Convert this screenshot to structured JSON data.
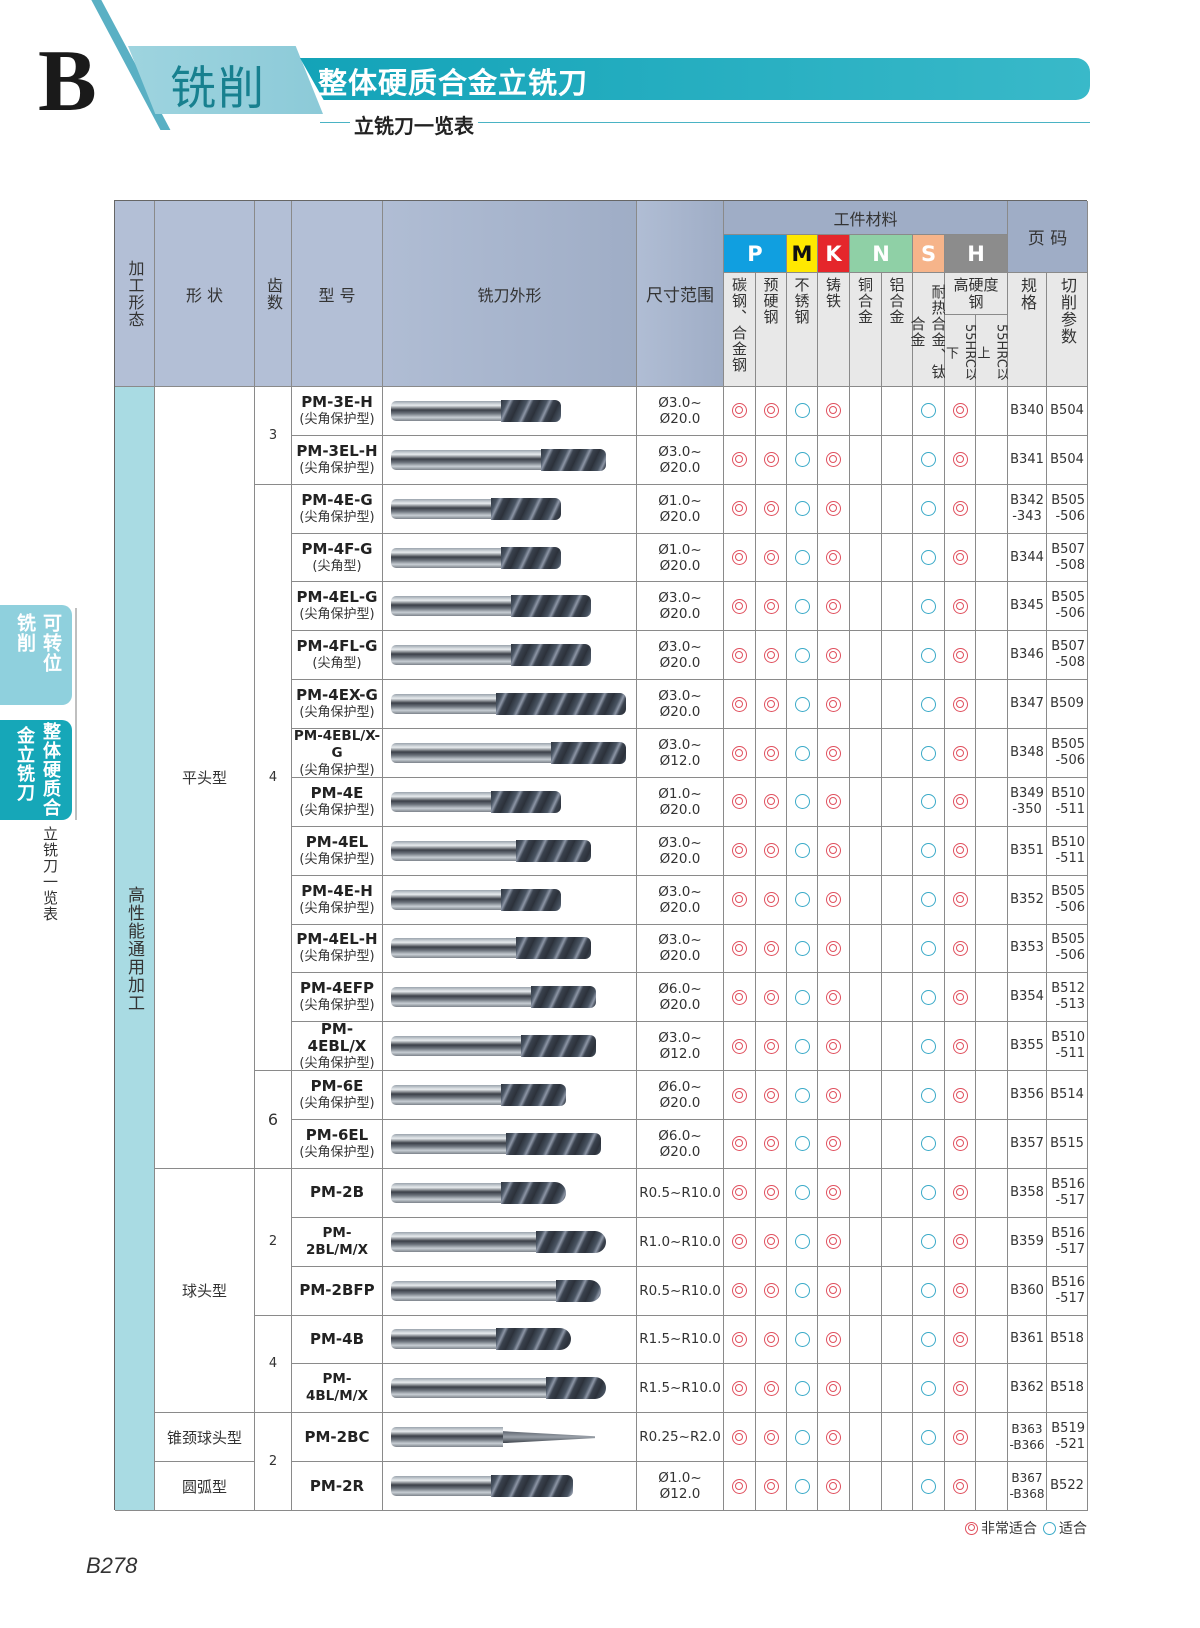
{
  "header": {
    "section_letter": "B",
    "category": "铣削",
    "title": "整体硬质合金立铣刀",
    "subtitle": "立铣刀一览表"
  },
  "side_tabs": [
    {
      "lines": [
        "可转位",
        "铣削"
      ],
      "active": false
    },
    {
      "lines": [
        "整体硬质合",
        "金立铣刀"
      ],
      "active": true
    }
  ],
  "side_caption": "立铣刀一览表",
  "table": {
    "headers": {
      "process": "加工形态",
      "shape": "形 状",
      "teeth": "齿数",
      "model": "型 号",
      "profile": "铣刀外形",
      "size_range": "尺寸范围",
      "materials_group": "工件材料",
      "pages_group": "页 码",
      "iso_groups": [
        {
          "letter": "P",
          "color": "#109fe0",
          "text_color": "#ffffff"
        },
        {
          "letter": "M",
          "color": "#ffe800",
          "text_color": "#111111"
        },
        {
          "letter": "K",
          "color": "#e5262b",
          "text_color": "#ffffff"
        },
        {
          "letter": "N",
          "color": "#8fd0a6",
          "text_color": "#ffffff"
        },
        {
          "letter": "S",
          "color": "#f6b48a",
          "text_color": "#ffffff"
        },
        {
          "letter": "H",
          "color": "#8c8c8c",
          "text_color": "#ffffff"
        }
      ],
      "materials": [
        "碳钢、合金钢",
        "预硬钢",
        "不锈钢",
        "铸铁",
        "铜合金",
        "铝合金",
        "耐热合金、钛合金",
        "55HRC以下",
        "55HRC以上"
      ],
      "hardened_group": "高硬度钢",
      "page_spec": "规格",
      "page_cutting": "切削参数"
    },
    "process_label": "高性能通用加工",
    "shape_groups": [
      {
        "label": "平头型",
        "start": 0,
        "span": 16
      },
      {
        "label": "球头型",
        "start": 16,
        "span": 5
      },
      {
        "label": "锥颈球头型",
        "start": 21,
        "span": 1
      },
      {
        "label": "圆弧型",
        "start": 22,
        "span": 1
      }
    ],
    "teeth_groups": [
      {
        "label": "3",
        "start": 0,
        "span": 2
      },
      {
        "label": "4",
        "start": 2,
        "span": 12
      },
      {
        "label": "6",
        "start": 14,
        "span": 2
      },
      {
        "label": "2",
        "start": 16,
        "span": 3
      },
      {
        "label": "4",
        "start": 19,
        "span": 2
      },
      {
        "label": "2",
        "start": 21,
        "span": 2
      }
    ],
    "rows": [
      {
        "model": "PM-3E-H",
        "note": "(尖角保护型)",
        "size": "Ø3.0~ Ø20.0",
        "spec": [
          "B340"
        ],
        "cut": [
          "B504"
        ]
      },
      {
        "model": "PM-3EL-H",
        "note": "(尖角保护型)",
        "size": "Ø3.0~ Ø20.0",
        "spec": [
          "B341"
        ],
        "cut": [
          "B504"
        ]
      },
      {
        "model": "PM-4E-G",
        "note": "(尖角保护型)",
        "size": "Ø1.0~ Ø20.0",
        "spec": [
          "B342",
          "-343"
        ],
        "cut": [
          "B505",
          "-506"
        ]
      },
      {
        "model": "PM-4F-G",
        "note": "(尖角型)",
        "size": "Ø1.0~ Ø20.0",
        "spec": [
          "B344"
        ],
        "cut": [
          "B507",
          "-508"
        ]
      },
      {
        "model": "PM-4EL-G",
        "note": "(尖角保护型)",
        "size": "Ø3.0~ Ø20.0",
        "spec": [
          "B345"
        ],
        "cut": [
          "B505",
          "-506"
        ]
      },
      {
        "model": "PM-4FL-G",
        "note": "(尖角型)",
        "size": "Ø3.0~ Ø20.0",
        "spec": [
          "B346"
        ],
        "cut": [
          "B507",
          "-508"
        ]
      },
      {
        "model": "PM-4EX-G",
        "note": "(尖角保护型)",
        "size": "Ø3.0~ Ø20.0",
        "spec": [
          "B347"
        ],
        "cut": [
          "B509"
        ]
      },
      {
        "model": "PM-4EBL/X-G",
        "note": "(尖角保护型)",
        "size": "Ø3.0~ Ø12.0",
        "spec": [
          "B348"
        ],
        "cut": [
          "B505",
          "-506"
        ]
      },
      {
        "model": "PM-4E",
        "note": "(尖角保护型)",
        "size": "Ø1.0~ Ø20.0",
        "spec": [
          "B349",
          "-350"
        ],
        "cut": [
          "B510",
          "-511"
        ]
      },
      {
        "model": "PM-4EL",
        "note": "(尖角保护型)",
        "size": "Ø3.0~ Ø20.0",
        "spec": [
          "B351"
        ],
        "cut": [
          "B510",
          "-511"
        ]
      },
      {
        "model": "PM-4E-H",
        "note": "(尖角保护型)",
        "size": "Ø3.0~ Ø20.0",
        "spec": [
          "B352"
        ],
        "cut": [
          "B505",
          "-506"
        ]
      },
      {
        "model": "PM-4EL-H",
        "note": "(尖角保护型)",
        "size": "Ø3.0~ Ø20.0",
        "spec": [
          "B353"
        ],
        "cut": [
          "B505",
          "-506"
        ]
      },
      {
        "model": "PM-4EFP",
        "note": "(尖角保护型)",
        "size": "Ø6.0~ Ø20.0",
        "spec": [
          "B354"
        ],
        "cut": [
          "B512",
          "-513"
        ]
      },
      {
        "model": "PM-4EBL/X",
        "note": "(尖角保护型)",
        "size": "Ø3.0~ Ø12.0",
        "spec": [
          "B355"
        ],
        "cut": [
          "B510",
          "-511"
        ]
      },
      {
        "model": "PM-6E",
        "note": "(尖角保护型)",
        "size": "Ø6.0~ Ø20.0",
        "spec": [
          "B356"
        ],
        "cut": [
          "B514"
        ]
      },
      {
        "model": "PM-6EL",
        "note": "(尖角保护型)",
        "size": "Ø6.0~ Ø20.0",
        "spec": [
          "B357"
        ],
        "cut": [
          "B515"
        ]
      },
      {
        "model": "PM-2B",
        "note": "",
        "size": "R0.5~R10.0",
        "spec": [
          "B358"
        ],
        "cut": [
          "B516",
          "-517"
        ]
      },
      {
        "model": "PM-2BL/M/X",
        "note": "",
        "size": "R1.0~R10.0",
        "spec": [
          "B359"
        ],
        "cut": [
          "B516",
          "-517"
        ]
      },
      {
        "model": "PM-2BFP",
        "note": "",
        "size": "R0.5~R10.0",
        "spec": [
          "B360"
        ],
        "cut": [
          "B516",
          "-517"
        ]
      },
      {
        "model": "PM-4B",
        "note": "",
        "size": "R1.5~R10.0",
        "spec": [
          "B361"
        ],
        "cut": [
          "B518"
        ]
      },
      {
        "model": "PM-4BL/M/X",
        "note": "",
        "size": "R1.5~R10.0",
        "spec": [
          "B362"
        ],
        "cut": [
          "B518"
        ]
      },
      {
        "model": "PM-2BC",
        "note": "",
        "size": "R0.25~R2.0",
        "spec": [
          "B363",
          "-B366"
        ],
        "cut": [
          "B519",
          "-521"
        ]
      },
      {
        "model": "PM-2R",
        "note": "",
        "size": "Ø1.0~ Ø12.0",
        "spec": [
          "B367",
          "-B368"
        ],
        "cut": [
          "B522"
        ]
      }
    ],
    "suitability_pattern": [
      "very",
      "very",
      "good",
      "very",
      "",
      "",
      "good",
      "very",
      ""
    ]
  },
  "legend": {
    "very_suitable": "非常适合",
    "suitable": "适合"
  },
  "page_number": "B278"
}
